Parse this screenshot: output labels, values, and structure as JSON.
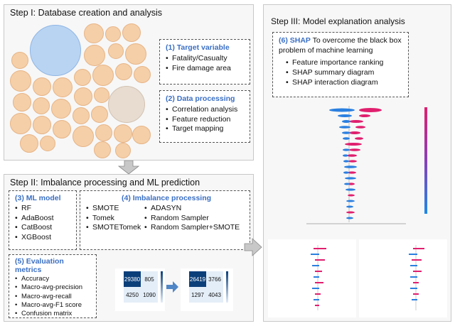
{
  "step1": {
    "title": "Step I: Database creation and analysis",
    "target_box": {
      "title": "(1) Target variable",
      "items": [
        "Fatality/Casualty",
        "Fire damage area"
      ]
    },
    "data_box": {
      "title": "(2) Data processing",
      "items": [
        "Correlation analysis",
        "Feature reduction",
        "Target mapping"
      ]
    }
  },
  "step2": {
    "title": "Step II: Imbalance processing and ML prediction",
    "ml_box": {
      "title": "(3) ML model",
      "items": [
        "RF",
        "AdaBoost",
        "CatBoost",
        "XGBoost"
      ]
    },
    "imb_box": {
      "title": "(4) Imbalance processing",
      "col1": [
        "SMOTE",
        "Tomek",
        "SMOTETomek"
      ],
      "col2": [
        "ADASYN",
        "Random Sampler",
        "Random Sampler+SMOTE"
      ]
    },
    "eval_box": {
      "title": "(5) Evaluation metrics",
      "items": [
        "Accuracy",
        "Macro-avg-precision",
        "Macro-avg-recall",
        "Macro-avg-F1 score",
        "Confusion matrix"
      ]
    },
    "cm1": {
      "values": [
        "29380",
        "805",
        "4250",
        "1090"
      ]
    },
    "cm2": {
      "values": [
        "26419",
        "3766",
        "1297",
        "4043"
      ]
    }
  },
  "step3": {
    "title": "Step III: Model explanation analysis",
    "shap_box": {
      "title": "(6) SHAP",
      "desc": "To overcome the black box problem of machine learning",
      "items": [
        "Feature importance ranking",
        "SHAP summary diagram",
        "SHAP interaction diagram"
      ]
    }
  },
  "colors": {
    "accent": "#3a6fc4",
    "panel": "#f7f7f7",
    "bubble": "#f5cfa8",
    "cm_dark": "#0b3f7a",
    "cm_light": "#dce8f5"
  }
}
